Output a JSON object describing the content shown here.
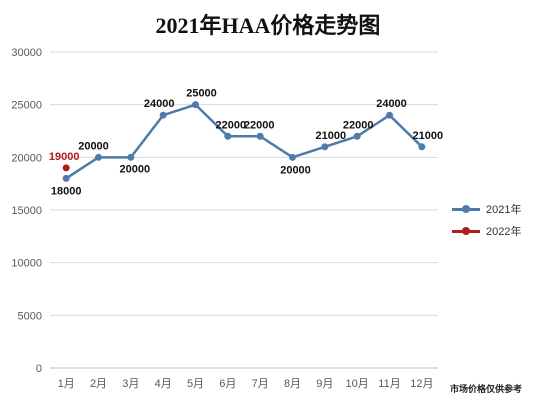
{
  "title": "2021年HAA价格走势图",
  "footnote": "市场价格仅供参考",
  "chart_data": {
    "type": "line",
    "title": "2021年HAA价格走势图",
    "categories": [
      "1月",
      "2月",
      "3月",
      "4月",
      "5月",
      "6月",
      "7月",
      "8月",
      "9月",
      "10月",
      "11月",
      "12月"
    ],
    "ylim": [
      0,
      30000
    ],
    "yticks": [
      0,
      5000,
      10000,
      15000,
      20000,
      25000,
      30000
    ],
    "grid": "horizontal",
    "legend_position": "right",
    "series": [
      {
        "name": "2021年",
        "color": "#4f7bab",
        "values": [
          18000,
          20000,
          20000,
          24000,
          25000,
          22000,
          22000,
          20000,
          21000,
          22000,
          24000,
          21000
        ],
        "labels": [
          "18000",
          "20000",
          "20000",
          "24000",
          "25000",
          "22000",
          "22000",
          "20000",
          "21000",
          "22000",
          "24000",
          "21000"
        ]
      },
      {
        "name": "2022年",
        "color": "#b11c1c",
        "values": [
          19000,
          null,
          null,
          null,
          null,
          null,
          null,
          null,
          null,
          null,
          null,
          null
        ],
        "labels": [
          "19000"
        ]
      }
    ]
  }
}
